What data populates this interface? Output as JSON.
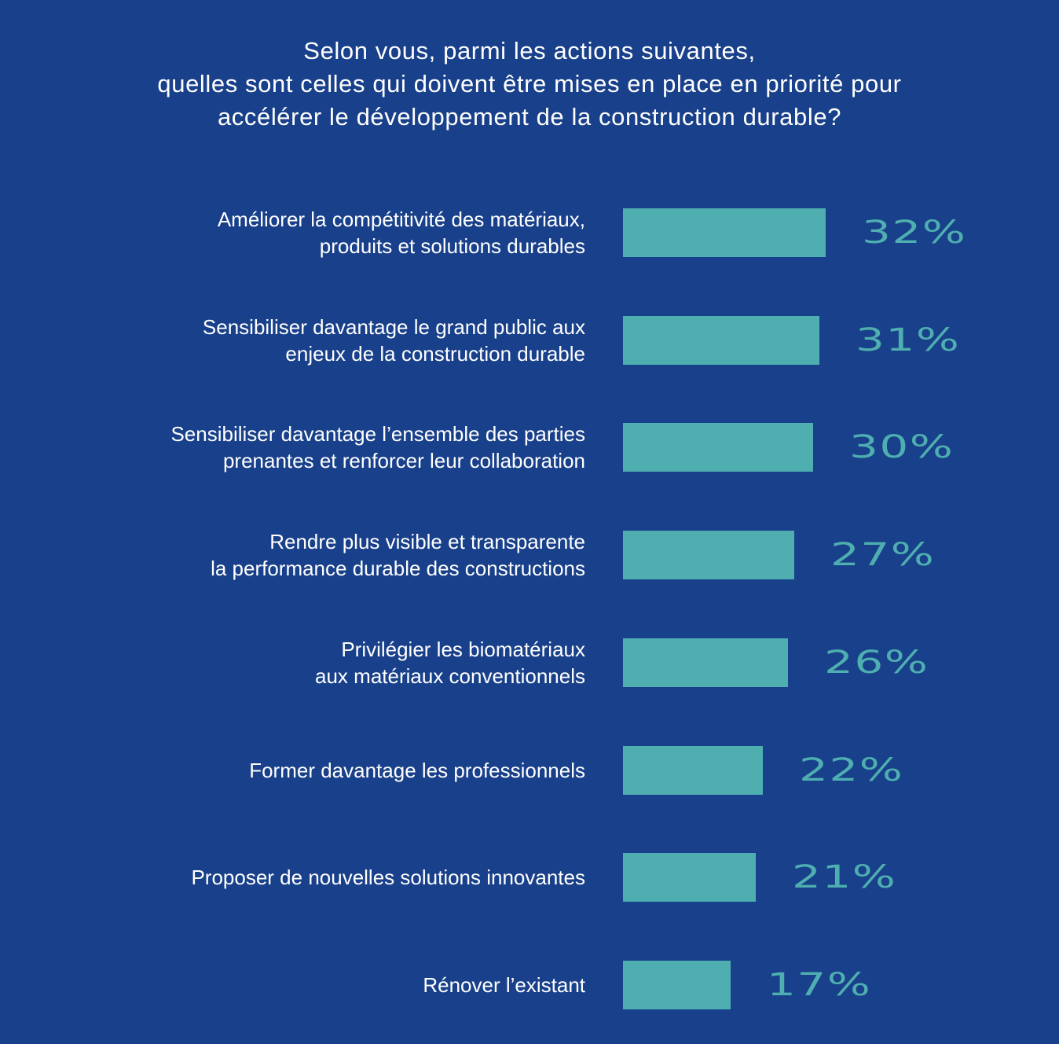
{
  "title_lines": [
    "Selon vous, parmi les actions suivantes,",
    "quelles sont celles qui doivent être mises en place en priorité pour",
    "accélérer le développement de la construction durable?"
  ],
  "colors": {
    "background": "#19408a",
    "bar": "#4eaeb0",
    "label_text": "#ffffff",
    "value_text": "#4eaeb0"
  },
  "chart_data": {
    "type": "bar",
    "orientation": "horizontal",
    "title": "Selon vous, parmi les actions suivantes, quelles sont celles qui doivent être mises en place en priorité pour accélérer le développement de la construction durable?",
    "categories": [
      [
        "Améliorer la compétitivité des matériaux,",
        "produits et solutions durables"
      ],
      [
        "Sensibiliser davantage le grand public aux",
        "enjeux de la construction durable"
      ],
      [
        "Sensibiliser davantage l’ensemble des parties",
        "prenantes et renforcer leur collaboration"
      ],
      [
        "Rendre plus visible et transparente",
        "la performance durable des constructions"
      ],
      [
        "Privilégier les biomatériaux",
        "aux matériaux conventionnels"
      ],
      [
        "Former davantage les professionnels"
      ],
      [
        "Proposer de nouvelles solutions innovantes"
      ],
      [
        "Rénover l’existant"
      ]
    ],
    "values": [
      32,
      31,
      30,
      27,
      26,
      22,
      21,
      17
    ],
    "value_labels": [
      "32%",
      "31%",
      "30%",
      "27%",
      "26%",
      "22%",
      "21%",
      "17%"
    ],
    "unit": "%",
    "xlim": [
      0,
      100
    ],
    "grid": false,
    "legend": "none"
  }
}
